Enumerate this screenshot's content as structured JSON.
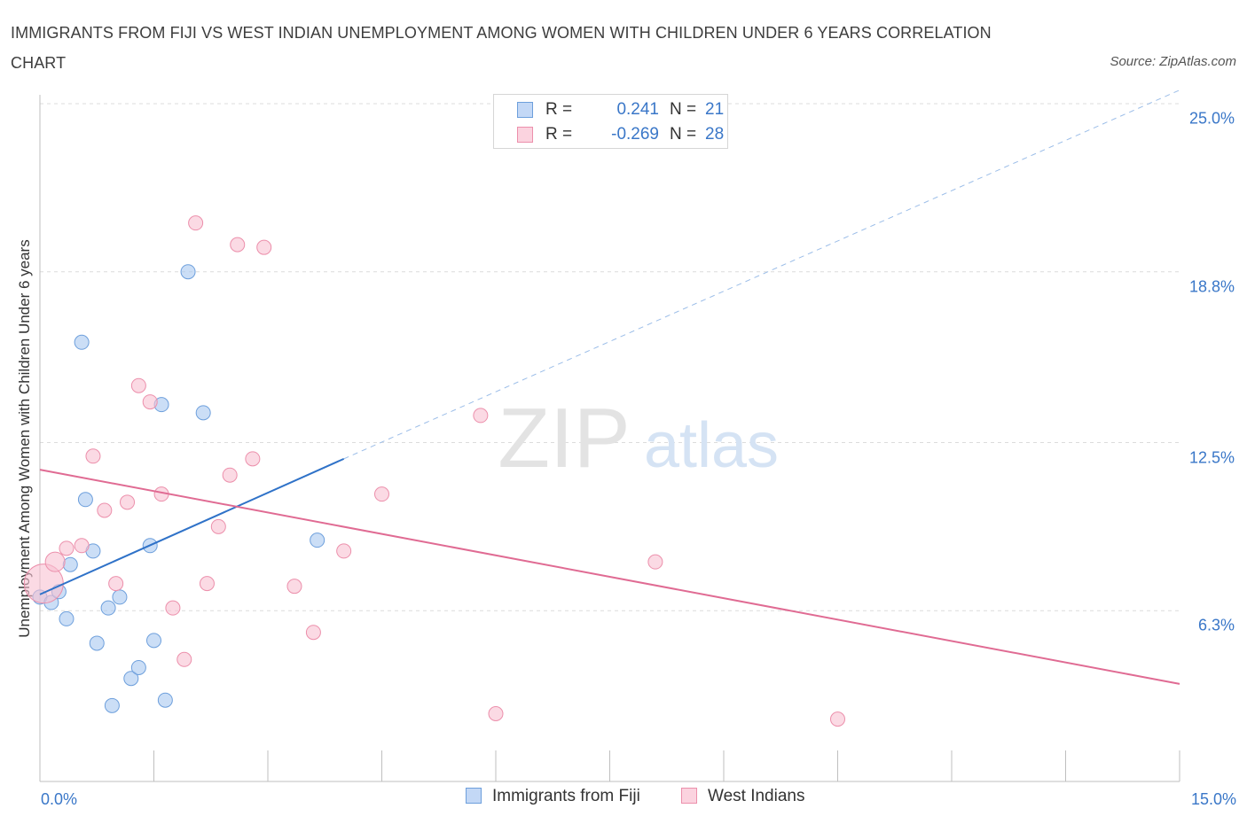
{
  "chart_data": {
    "type": "scatter",
    "title": "IMMIGRANTS FROM FIJI VS WEST INDIAN UNEMPLOYMENT AMONG WOMEN WITH CHILDREN UNDER 6 YEARS CORRELATION CHART",
    "source": "Source: ZipAtlas.com",
    "ylabel": "Unemployment Among Women with Children Under 6 years",
    "xlim": [
      0,
      15
    ],
    "ylim": [
      0,
      25
    ],
    "x_tick_labels": [
      "0.0%",
      "15.0%"
    ],
    "y_tick_labels": [
      "6.3%",
      "12.5%",
      "18.8%",
      "25.0%"
    ],
    "y_ticks": [
      6.3,
      12.5,
      18.8,
      25.0
    ],
    "grid": "horizontal dashed",
    "watermark": "ZIPatlas",
    "stats": [
      {
        "r_label": "R =",
        "r_value": "0.241",
        "n_label": "N =",
        "n_value": "21"
      },
      {
        "r_label": "R =",
        "r_value": "-0.269",
        "n_label": "N =",
        "n_value": "28"
      }
    ],
    "series": [
      {
        "name": "Immigrants from Fiji",
        "color": "#a9c8f0",
        "edge": "#6d9fdc",
        "line_color": "#2f72c8",
        "points": [
          [
            0.0,
            6.8
          ],
          [
            0.15,
            6.6
          ],
          [
            0.25,
            7.0
          ],
          [
            0.35,
            6.0
          ],
          [
            0.4,
            8.0
          ],
          [
            0.55,
            16.2
          ],
          [
            0.6,
            10.4
          ],
          [
            0.7,
            8.5
          ],
          [
            0.75,
            5.1
          ],
          [
            0.9,
            6.4
          ],
          [
            0.95,
            2.8
          ],
          [
            1.05,
            6.8
          ],
          [
            1.2,
            3.8
          ],
          [
            1.3,
            4.2
          ],
          [
            1.45,
            8.7
          ],
          [
            1.5,
            5.2
          ],
          [
            1.6,
            13.9
          ],
          [
            1.65,
            3.0
          ],
          [
            1.95,
            18.8
          ],
          [
            2.15,
            13.6
          ],
          [
            3.65,
            8.9
          ]
        ],
        "trend": {
          "x": [
            0,
            4.0
          ],
          "y": [
            6.9,
            11.9
          ],
          "extended_x": [
            4.0,
            15
          ],
          "extended_y": [
            11.9,
            25.5
          ]
        }
      },
      {
        "name": "West Indians",
        "color": "#f8c2d2",
        "edge": "#ec8fab",
        "line_color": "#e06b93",
        "points": [
          [
            0.05,
            7.3
          ],
          [
            0.2,
            8.1
          ],
          [
            0.35,
            8.6
          ],
          [
            0.55,
            8.7
          ],
          [
            0.7,
            12.0
          ],
          [
            0.85,
            10.0
          ],
          [
            1.0,
            7.3
          ],
          [
            1.15,
            10.3
          ],
          [
            1.3,
            14.6
          ],
          [
            1.45,
            14.0
          ],
          [
            1.6,
            10.6
          ],
          [
            1.75,
            6.4
          ],
          [
            1.9,
            4.5
          ],
          [
            2.05,
            20.6
          ],
          [
            2.2,
            7.3
          ],
          [
            2.35,
            9.4
          ],
          [
            2.5,
            11.3
          ],
          [
            2.6,
            19.8
          ],
          [
            2.8,
            11.9
          ],
          [
            2.95,
            19.7
          ],
          [
            3.35,
            7.2
          ],
          [
            3.6,
            5.5
          ],
          [
            4.0,
            8.5
          ],
          [
            4.5,
            10.6
          ],
          [
            5.8,
            13.5
          ],
          [
            6.0,
            2.5
          ],
          [
            8.1,
            8.1
          ],
          [
            10.5,
            2.3
          ]
        ],
        "trend": {
          "x": [
            0,
            15
          ],
          "y": [
            11.5,
            3.6
          ]
        }
      }
    ]
  }
}
